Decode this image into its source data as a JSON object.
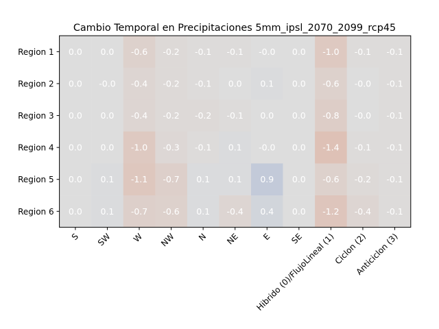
{
  "chart_data": {
    "type": "heatmap",
    "title": "Cambio Temporal en Precipitaciones 5mm_ipsl_2070_2099_rcp45",
    "xlabel": "",
    "ylabel": "",
    "x_categories": [
      "S",
      "SW",
      "W",
      "NW",
      "N",
      "NE",
      "E",
      "SE",
      "Hibrido (0)/FlujoLineal (1)",
      "Ciclon (2)",
      "Anticiclon (3)"
    ],
    "y_categories": [
      "Region 1",
      "Region 2",
      "Region 3",
      "Region 4",
      "Region 5",
      "Region 6"
    ],
    "values": [
      [
        0.0,
        0.0,
        -0.6,
        -0.2,
        -0.1,
        -0.1,
        -0.0,
        0.0,
        -1.0,
        -0.1,
        -0.1
      ],
      [
        0.0,
        -0.0,
        -0.4,
        -0.2,
        -0.1,
        0.0,
        0.1,
        0.0,
        -0.6,
        -0.0,
        -0.1
      ],
      [
        0.0,
        0.0,
        -0.4,
        -0.2,
        -0.2,
        -0.1,
        0.0,
        0.0,
        -0.8,
        -0.0,
        -0.1
      ],
      [
        0.0,
        0.0,
        -1.0,
        -0.3,
        -0.1,
        0.1,
        -0.0,
        0.0,
        -1.4,
        -0.1,
        -0.1
      ],
      [
        0.0,
        0.1,
        -1.1,
        -0.7,
        0.1,
        0.1,
        0.9,
        0.0,
        -0.6,
        -0.2,
        -0.1
      ],
      [
        0.0,
        0.1,
        -0.7,
        -0.6,
        0.1,
        -0.4,
        0.4,
        0.0,
        -1.2,
        -0.4,
        -0.1
      ]
    ],
    "labels": [
      [
        "0.0",
        "0.0",
        "-0.6",
        "-0.2",
        "-0.1",
        "-0.1",
        "-0.0",
        "0.0",
        "-1.0",
        "-0.1",
        "-0.1"
      ],
      [
        "0.0",
        "-0.0",
        "-0.4",
        "-0.2",
        "-0.1",
        "0.0",
        "0.1",
        "0.0",
        "-0.6",
        "-0.0",
        "-0.1"
      ],
      [
        "0.0",
        "0.0",
        "-0.4",
        "-0.2",
        "-0.2",
        "-0.1",
        "0.0",
        "0.0",
        "-0.8",
        "-0.0",
        "-0.1"
      ],
      [
        "0.0",
        "0.0",
        "-1.0",
        "-0.3",
        "-0.1",
        "0.1",
        "-0.0",
        "0.0",
        "-1.4",
        "-0.1",
        "-0.1"
      ],
      [
        "0.0",
        "0.1",
        "-1.1",
        "-0.7",
        "0.1",
        "0.1",
        "0.9",
        "0.0",
        "-0.6",
        "-0.2",
        "-0.1"
      ],
      [
        "0.0",
        "0.1",
        "-0.7",
        "-0.6",
        "0.1",
        "-0.4",
        "0.4",
        "0.0",
        "-1.2",
        "-0.4",
        "-0.1"
      ]
    ],
    "color_scale": {
      "vmin": -5,
      "vmax": 5,
      "negative": "#e07a52",
      "neutral": "#dddddd",
      "positive": "#4a74c8"
    },
    "cell_text_color": "#ffffff",
    "grid": false,
    "legend": "none"
  }
}
